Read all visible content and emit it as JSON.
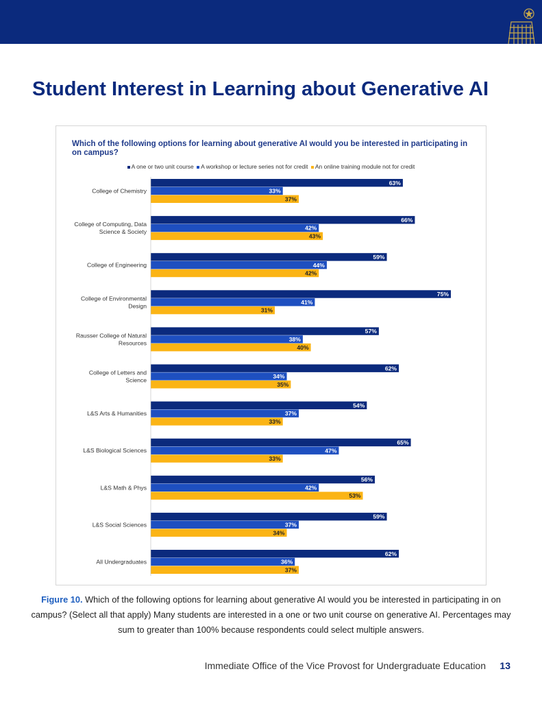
{
  "header": {
    "band_color": "#0b2a7d",
    "crest_icon": "campanile-crest-icon"
  },
  "page": {
    "title": "Student Interest in Learning about Generative AI"
  },
  "chart_data": {
    "type": "bar",
    "orientation": "horizontal",
    "title": "Which of the following options for learning about generative AI would you be interested in participating in on campus?",
    "legend_position": "top",
    "xlim": [
      0,
      100
    ],
    "grid": false,
    "categories": [
      "College of Chemistry",
      "College of Computing, Data Science & Society",
      "College of Engineering",
      "College of Environmental Design",
      "Rausser College of Natural Resources",
      "College of Letters and Science",
      "L&S Arts & Humanities",
      "L&S Biological Sciences",
      "L&S Math & Phys",
      "L&S Social Sciences",
      "All Undergraduates"
    ],
    "category_lines": [
      [
        "College of Chemistry"
      ],
      [
        "College of Computing, Data",
        "Science & Society"
      ],
      [
        "College of Engineering"
      ],
      [
        "College of Environmental",
        "Design"
      ],
      [
        "Rausser College of Natural",
        "Resources"
      ],
      [
        "College of Letters and",
        "Science"
      ],
      [
        "L&S Arts & Humanities"
      ],
      [
        "L&S Biological Sciences"
      ],
      [
        "L&S Math & Phys"
      ],
      [
        "L&S Social Sciences"
      ],
      [
        "All Undergraduates"
      ]
    ],
    "series": [
      {
        "name": "A one or two unit course",
        "color": "#0b2a7d",
        "values": [
          63,
          66,
          59,
          75,
          57,
          62,
          54,
          65,
          56,
          59,
          62
        ]
      },
      {
        "name": "A workshop or lecture series not for credit",
        "color": "#1e4fc0",
        "values": [
          33,
          42,
          44,
          41,
          38,
          34,
          37,
          47,
          42,
          37,
          36
        ]
      },
      {
        "name": "An online training module not for credit",
        "color": "#fbb415",
        "values": [
          37,
          43,
          42,
          31,
          40,
          35,
          33,
          33,
          53,
          34,
          37
        ]
      }
    ],
    "value_suffix": "%"
  },
  "caption": {
    "label": "Figure 10.",
    "text": " Which of the following options for learning about generative AI would you be interested in participating in on campus? (Select all that apply) Many students are interested in a one or two unit course on generative AI. Percentages may sum to greater than 100% because respondents could select multiple answers."
  },
  "footer": {
    "office": "Immediate Office of the Vice Provost for Undergraduate Education",
    "page_number": "13"
  }
}
